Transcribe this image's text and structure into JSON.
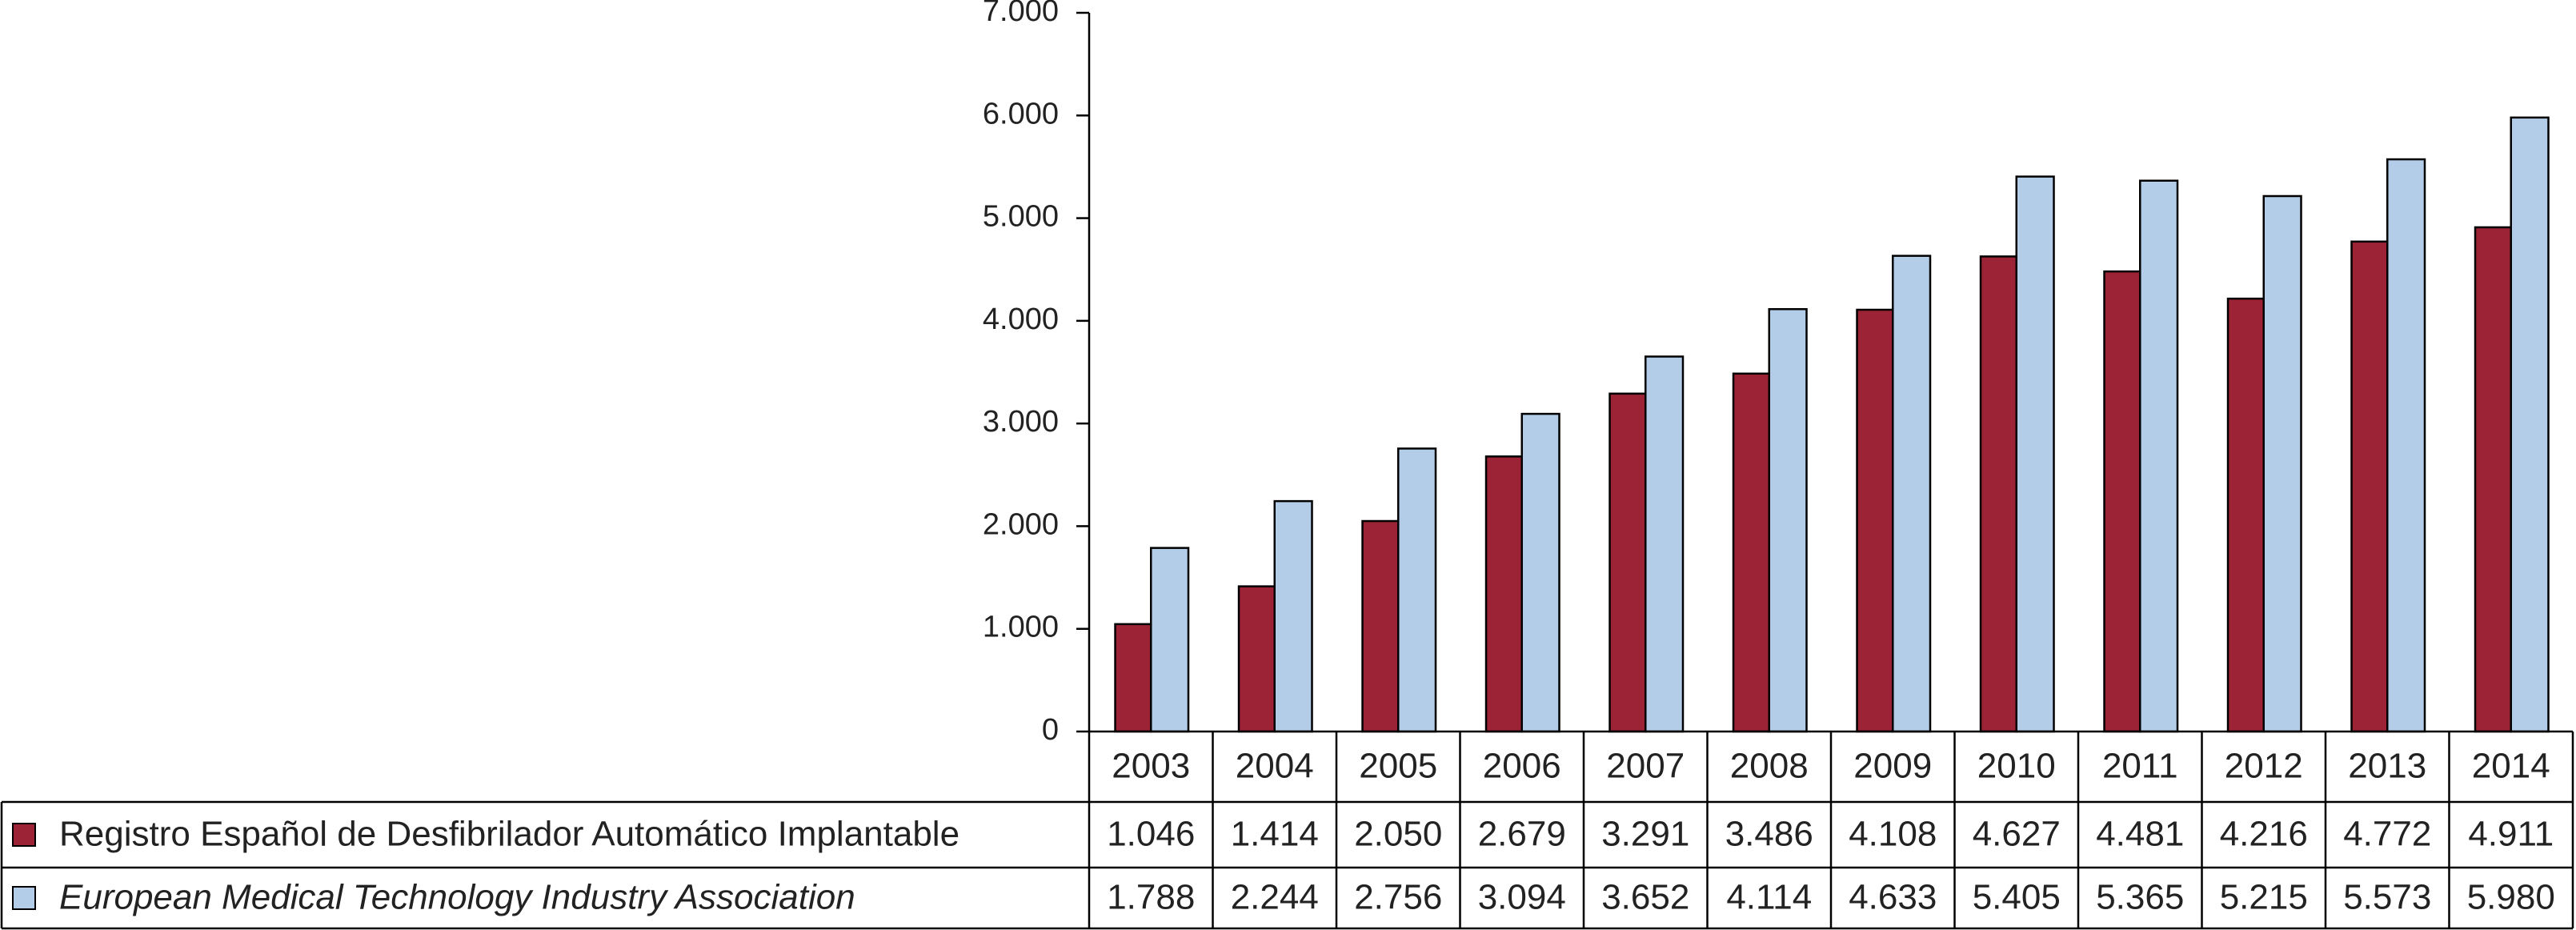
{
  "chart_data": {
    "type": "bar",
    "categories": [
      "2003",
      "2004",
      "2005",
      "2006",
      "2007",
      "2008",
      "2009",
      "2010",
      "2011",
      "2012",
      "2013",
      "2014"
    ],
    "series": [
      {
        "name": "Registro Español de Desfibrilador Automático Implantable",
        "color": "#9b2335",
        "values": [
          1046,
          1414,
          2050,
          2679,
          3291,
          3486,
          4108,
          4627,
          4481,
          4216,
          4772,
          4911
        ],
        "value_labels": [
          "1.046",
          "1.414",
          "2.050",
          "2.679",
          "3.291",
          "3.486",
          "4.108",
          "4.627",
          "4.481",
          "4.216",
          "4.772",
          "4.911"
        ]
      },
      {
        "name": "European Medical Technology Industry Association",
        "color": "#b3cde8",
        "values": [
          1788,
          2244,
          2756,
          3094,
          3652,
          4114,
          4633,
          5405,
          5365,
          5215,
          5573,
          5980
        ],
        "value_labels": [
          "1.788",
          "2.244",
          "2.756",
          "3.094",
          "3.652",
          "4.114",
          "4.633",
          "5.405",
          "5.365",
          "5.215",
          "5.573",
          "5.980"
        ]
      }
    ],
    "ylim": [
      0,
      7000
    ],
    "yticks": [
      0,
      {
        "value": 1000,
        "label": "1.000"
      },
      {
        "value": 2000,
        "label": "2.000"
      },
      {
        "value": 3000,
        "label": "3.000"
      },
      {
        "value": 4000,
        "label": "4.000"
      },
      {
        "value": 5000,
        "label": "5.000"
      },
      {
        "value": 6000,
        "label": "6.000"
      },
      {
        "value": 7000,
        "label": "7.000"
      }
    ]
  }
}
